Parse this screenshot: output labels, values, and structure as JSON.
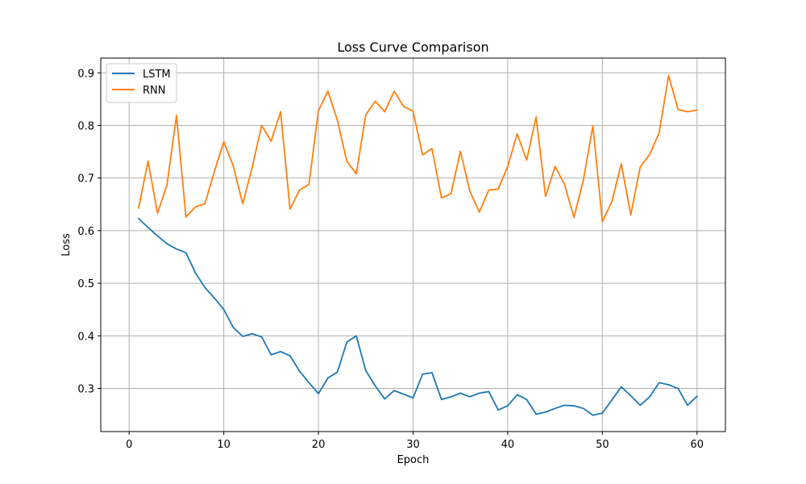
{
  "chart_data": {
    "type": "line",
    "title": "Loss Curve Comparison",
    "xlabel": "Epoch",
    "ylabel": "Loss",
    "xlim": [
      -3,
      63
    ],
    "ylim": [
      0.218,
      0.928
    ],
    "xticks": [
      0,
      10,
      20,
      30,
      40,
      50,
      60
    ],
    "yticks": [
      0.3,
      0.4,
      0.5,
      0.6,
      0.7,
      0.8,
      0.9
    ],
    "ytick_labels": [
      "0.3",
      "0.4",
      "0.5",
      "0.6",
      "0.7",
      "0.8",
      "0.9"
    ],
    "grid": true,
    "legend_position": "upper-left",
    "x": [
      1,
      2,
      3,
      4,
      5,
      6,
      7,
      8,
      9,
      10,
      11,
      12,
      13,
      14,
      15,
      16,
      17,
      18,
      19,
      20,
      21,
      22,
      23,
      24,
      25,
      26,
      27,
      28,
      29,
      30,
      31,
      32,
      33,
      34,
      35,
      36,
      37,
      38,
      39,
      40,
      41,
      42,
      43,
      44,
      45,
      46,
      47,
      48,
      49,
      50,
      51,
      52,
      53,
      54,
      55,
      56,
      57,
      58,
      59,
      60
    ],
    "series": [
      {
        "name": "LSTM",
        "color": "#1f77b4",
        "values": [
          0.623,
          0.606,
          0.59,
          0.575,
          0.565,
          0.558,
          0.52,
          0.492,
          0.472,
          0.45,
          0.416,
          0.399,
          0.404,
          0.398,
          0.364,
          0.37,
          0.362,
          0.333,
          0.311,
          0.29,
          0.32,
          0.331,
          0.388,
          0.4,
          0.334,
          0.305,
          0.28,
          0.296,
          0.289,
          0.282,
          0.327,
          0.33,
          0.279,
          0.284,
          0.291,
          0.284,
          0.291,
          0.294,
          0.259,
          0.267,
          0.288,
          0.279,
          0.251,
          0.255,
          0.262,
          0.268,
          0.267,
          0.262,
          0.249,
          0.253,
          0.278,
          0.303,
          0.286,
          0.268,
          0.284,
          0.311,
          0.307,
          0.3,
          0.268,
          0.285
        ]
      },
      {
        "name": "RNN",
        "color": "#ff7f0e",
        "values": [
          0.643,
          0.732,
          0.633,
          0.687,
          0.819,
          0.626,
          0.645,
          0.651,
          0.712,
          0.769,
          0.723,
          0.651,
          0.72,
          0.8,
          0.77,
          0.826,
          0.641,
          0.677,
          0.688,
          0.828,
          0.865,
          0.81,
          0.732,
          0.708,
          0.82,
          0.846,
          0.826,
          0.865,
          0.836,
          0.827,
          0.744,
          0.756,
          0.662,
          0.67,
          0.751,
          0.675,
          0.635,
          0.677,
          0.679,
          0.722,
          0.784,
          0.734,
          0.816,
          0.665,
          0.722,
          0.688,
          0.625,
          0.697,
          0.799,
          0.617,
          0.655,
          0.727,
          0.63,
          0.721,
          0.745,
          0.786,
          0.895,
          0.83,
          0.826,
          0.829
        ]
      }
    ]
  }
}
